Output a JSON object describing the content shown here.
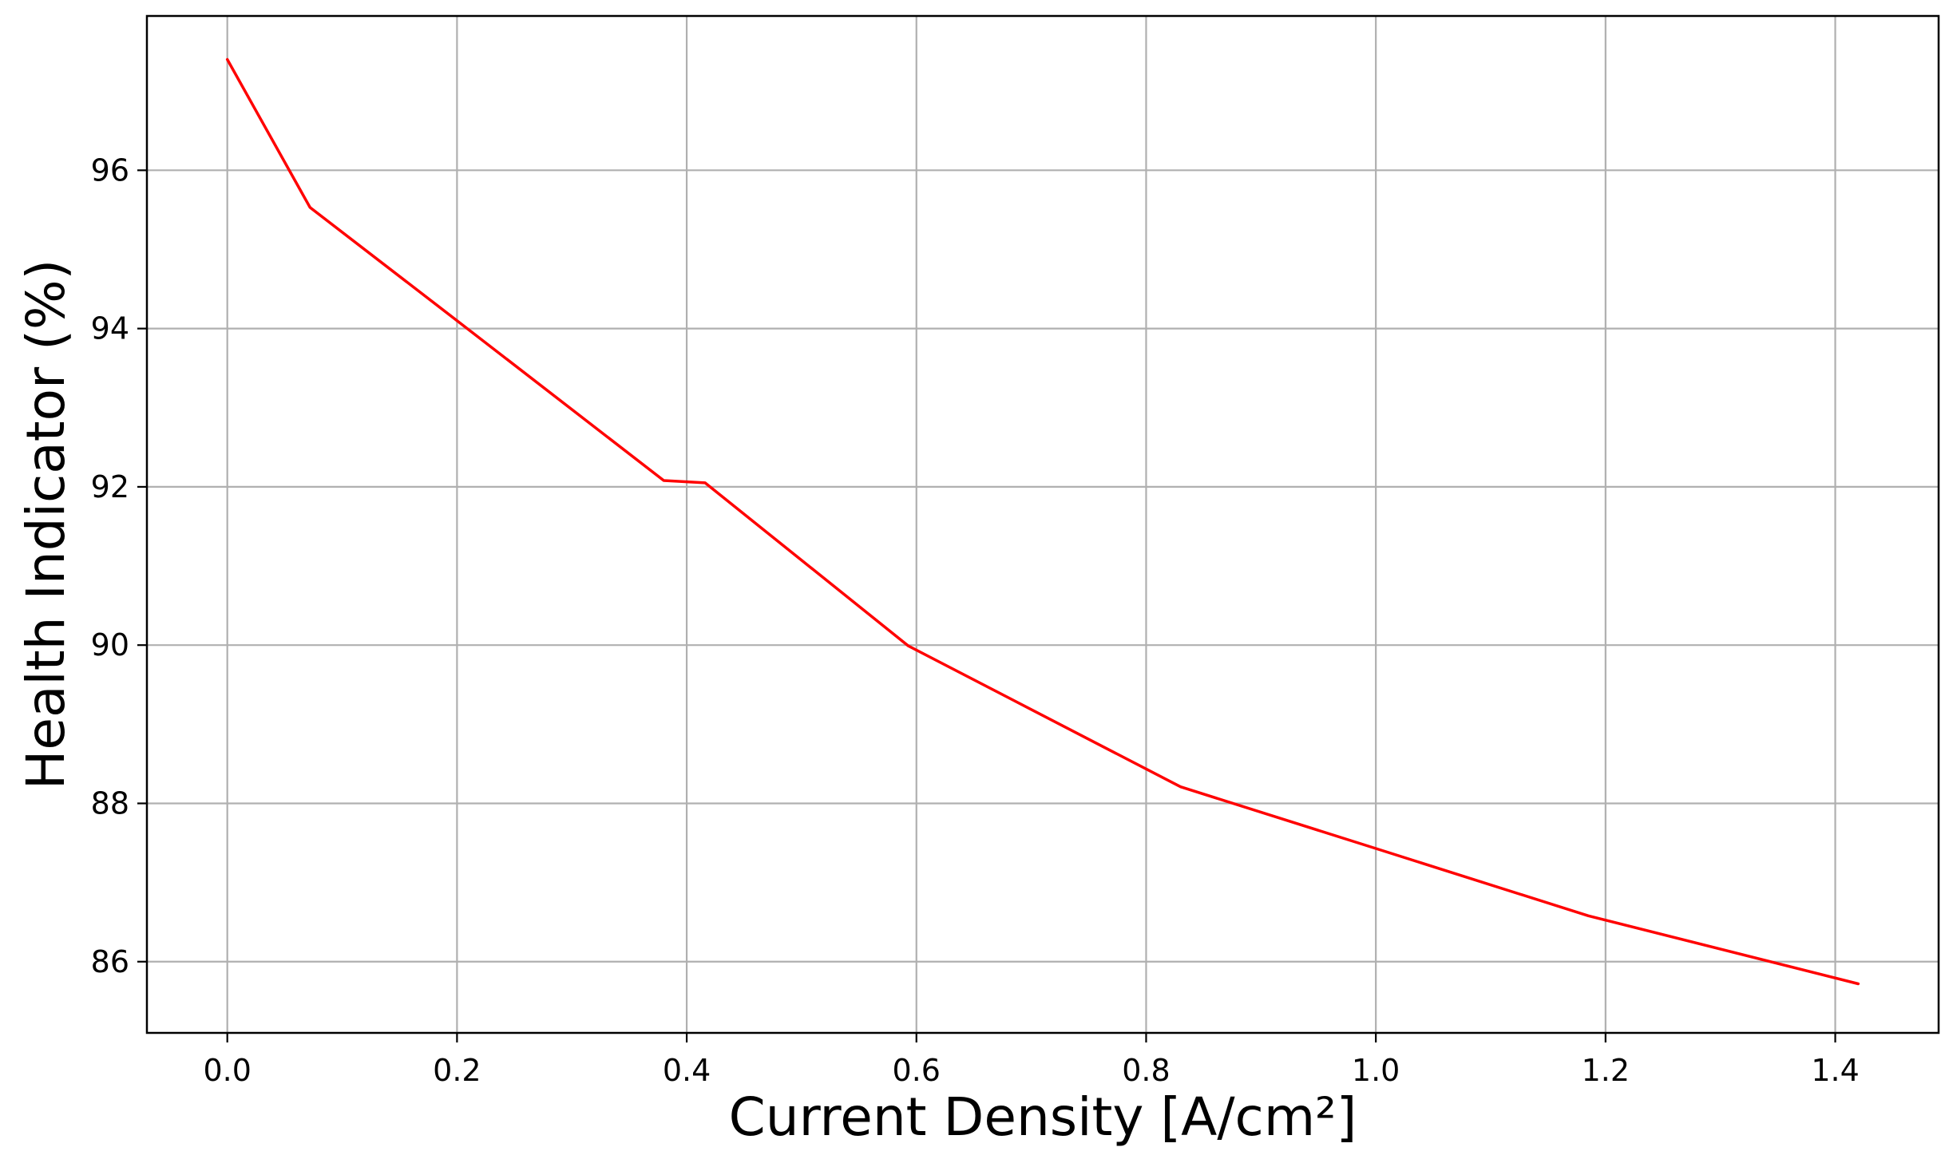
{
  "chart_data": {
    "type": "line",
    "title": "",
    "xlabel": "Current Density [A/cm²]",
    "ylabel": "Health Indicator (%)",
    "xlim": [
      -0.07,
      1.49
    ],
    "ylim": [
      85.1,
      97.95
    ],
    "x_ticks": [
      0.0,
      0.2,
      0.4,
      0.6,
      0.8,
      1.0,
      1.2,
      1.4
    ],
    "x_tick_labels": [
      "0.0",
      "0.2",
      "0.4",
      "0.6",
      "0.8",
      "1.0",
      "1.2",
      "1.4"
    ],
    "y_ticks": [
      86,
      88,
      90,
      92,
      94,
      96
    ],
    "y_tick_labels": [
      "86",
      "88",
      "90",
      "92",
      "94",
      "96"
    ],
    "grid": true,
    "series": [
      {
        "color": "#ff0000",
        "x": [
          0.0,
          0.072,
          0.2,
          0.38,
          0.416,
          0.593,
          0.83,
          1.0,
          1.185,
          1.42
        ],
        "y": [
          97.4,
          95.53,
          94.1,
          92.08,
          92.05,
          89.99,
          88.21,
          87.43,
          86.58,
          85.72
        ]
      }
    ]
  }
}
